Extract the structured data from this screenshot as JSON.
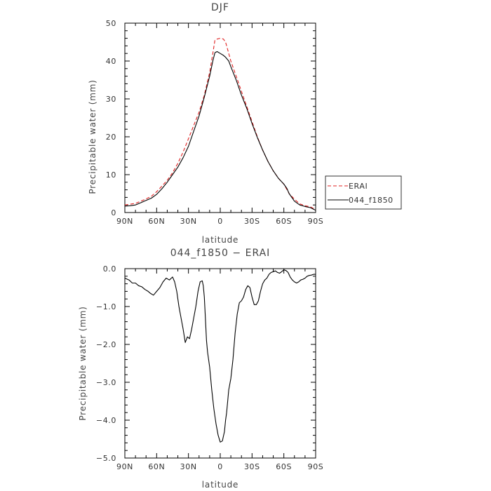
{
  "chart_data": [
    {
      "type": "line",
      "title": "DJF",
      "xlabel": "latitude",
      "ylabel": "Precipitable water  (mm)",
      "xlim": [
        90,
        -90
      ],
      "ylim": [
        0,
        50
      ],
      "x_ticks": [
        90,
        60,
        30,
        0,
        -30,
        -60,
        -90
      ],
      "x_tick_labels": [
        "90N",
        "60N",
        "30N",
        "0",
        "30S",
        "60S",
        "90S"
      ],
      "y_ticks": [
        0,
        10,
        20,
        30,
        40,
        50
      ],
      "y_tick_labels": [
        "0",
        "10",
        "20",
        "30",
        "40",
        "50"
      ],
      "legend": "right",
      "series": [
        {
          "name": "ERAI",
          "color": "#e02020",
          "dash": "dashed",
          "x": [
            90,
            85,
            80,
            75,
            70,
            65,
            60,
            55,
            50,
            45,
            40,
            35,
            30,
            25,
            20,
            15,
            10,
            7,
            5,
            3,
            0,
            -3,
            -5,
            -8,
            -10,
            -15,
            -20,
            -25,
            -30,
            -35,
            -40,
            -45,
            -50,
            -55,
            -60,
            -63,
            -65,
            -70,
            -75,
            -80,
            -85,
            -90
          ],
          "y": [
            2.0,
            2.2,
            2.4,
            3.0,
            3.6,
            4.3,
            5.5,
            7.0,
            8.5,
            10.5,
            13,
            16,
            19.5,
            23,
            26.5,
            31,
            37,
            42,
            45.5,
            45.8,
            46.0,
            45.8,
            45,
            42,
            40,
            36,
            32,
            28,
            24,
            20,
            16.5,
            13.5,
            11,
            9,
            7.5,
            6,
            5,
            3.5,
            2.3,
            1.8,
            1.5,
            0.8
          ]
        },
        {
          "name": "044_f1850",
          "color": "#000000",
          "dash": "solid",
          "x": [
            90,
            85,
            80,
            75,
            70,
            65,
            60,
            55,
            50,
            45,
            40,
            35,
            30,
            25,
            20,
            15,
            10,
            7,
            5,
            3,
            0,
            -3,
            -5,
            -8,
            -10,
            -15,
            -20,
            -25,
            -30,
            -35,
            -40,
            -45,
            -50,
            -55,
            -60,
            -63,
            -65,
            -70,
            -75,
            -80,
            -85,
            -90
          ],
          "y": [
            1.7,
            1.8,
            2.0,
            2.6,
            3.2,
            3.8,
            4.8,
            6.3,
            8.0,
            10.0,
            12,
            14.5,
            17.5,
            21.5,
            25.5,
            30.5,
            36,
            40,
            42.2,
            42.5,
            42.0,
            41.5,
            41,
            40,
            38.5,
            35,
            31,
            27.5,
            23.5,
            19.8,
            16.5,
            13.5,
            11,
            9,
            7.5,
            6.3,
            5,
            3,
            2,
            1.6,
            1.3,
            0.6
          ]
        }
      ]
    },
    {
      "type": "line",
      "title": "044_f1850 − ERAI",
      "xlabel": "latitude",
      "ylabel": "Precipitable water  (mm)",
      "xlim": [
        90,
        -90
      ],
      "ylim": [
        -5.0,
        0.0
      ],
      "x_ticks": [
        90,
        60,
        30,
        0,
        -30,
        -60,
        -90
      ],
      "x_tick_labels": [
        "90N",
        "60N",
        "30N",
        "0",
        "30S",
        "60S",
        "90S"
      ],
      "y_ticks": [
        0,
        -1,
        -2,
        -3,
        -4,
        -5
      ],
      "y_tick_labels": [
        "0.0",
        "−1.0",
        "−2.0",
        "−3.0",
        "−4.0",
        "−5.0"
      ],
      "series": [
        {
          "name": "044_f1850 − ERAI",
          "color": "#000000",
          "dash": "solid",
          "x": [
            90,
            86,
            83,
            80,
            77,
            74,
            71,
            68,
            66,
            63,
            60,
            57,
            54,
            51,
            48,
            45,
            43,
            41,
            39,
            37,
            35,
            33,
            31,
            29,
            27,
            25,
            23,
            21,
            19,
            17,
            16,
            15,
            14,
            13,
            12,
            10,
            8,
            6,
            4,
            2,
            0,
            -2,
            -4,
            -5,
            -6,
            -7,
            -8,
            -10,
            -12,
            -14,
            -16,
            -18,
            -20,
            -22,
            -24,
            -26,
            -28,
            -30,
            -32,
            -34,
            -36,
            -38,
            -40,
            -42,
            -44,
            -46,
            -48,
            -50,
            -52,
            -54,
            -56,
            -58,
            -60,
            -62,
            -64,
            -66,
            -68,
            -70,
            -72,
            -74,
            -76,
            -78,
            -80,
            -82,
            -84,
            -86,
            -88,
            -90
          ],
          "y": [
            -0.25,
            -0.3,
            -0.38,
            -0.38,
            -0.45,
            -0.48,
            -0.55,
            -0.6,
            -0.65,
            -0.7,
            -0.6,
            -0.5,
            -0.35,
            -0.25,
            -0.3,
            -0.22,
            -0.35,
            -0.6,
            -1.0,
            -1.3,
            -1.6,
            -1.95,
            -1.8,
            -1.85,
            -1.6,
            -1.3,
            -1.0,
            -0.6,
            -0.35,
            -0.32,
            -0.45,
            -0.75,
            -1.3,
            -1.9,
            -2.2,
            -2.6,
            -3.2,
            -3.7,
            -4.1,
            -4.4,
            -4.58,
            -4.55,
            -4.3,
            -4.0,
            -3.8,
            -3.5,
            -3.2,
            -2.9,
            -2.4,
            -1.7,
            -1.2,
            -0.9,
            -0.85,
            -0.75,
            -0.55,
            -0.45,
            -0.5,
            -0.75,
            -0.95,
            -0.95,
            -0.85,
            -0.6,
            -0.4,
            -0.3,
            -0.25,
            -0.15,
            -0.1,
            -0.08,
            -0.06,
            -0.1,
            -0.12,
            -0.08,
            -0.03,
            -0.05,
            -0.1,
            -0.22,
            -0.3,
            -0.35,
            -0.38,
            -0.35,
            -0.3,
            -0.28,
            -0.25,
            -0.2,
            -0.18,
            -0.17,
            -0.15,
            -0.15
          ]
        }
      ]
    }
  ]
}
